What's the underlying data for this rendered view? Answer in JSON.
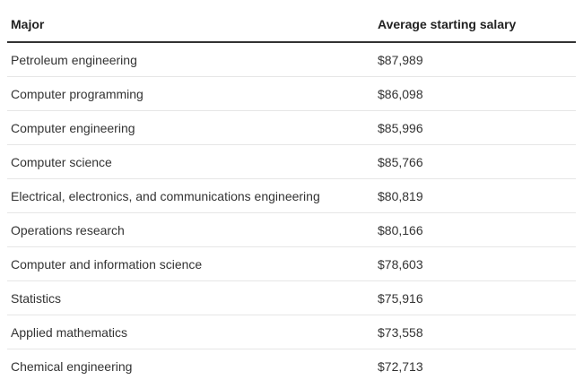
{
  "table": {
    "headers": {
      "major": "Major",
      "salary": "Average starting salary"
    },
    "rows": [
      {
        "major": "Petroleum engineering",
        "salary": "$87,989"
      },
      {
        "major": "Computer programming",
        "salary": "$86,098"
      },
      {
        "major": "Computer engineering",
        "salary": "$85,996"
      },
      {
        "major": "Computer science",
        "salary": "$85,766"
      },
      {
        "major": "Electrical, electronics, and communications engineering",
        "salary": "$80,819"
      },
      {
        "major": "Operations research",
        "salary": "$80,166"
      },
      {
        "major": "Computer and information science",
        "salary": "$78,603"
      },
      {
        "major": "Statistics",
        "salary": "$75,916"
      },
      {
        "major": "Applied mathematics",
        "salary": "$73,558"
      },
      {
        "major": "Chemical engineering",
        "salary": "$72,713"
      }
    ]
  }
}
